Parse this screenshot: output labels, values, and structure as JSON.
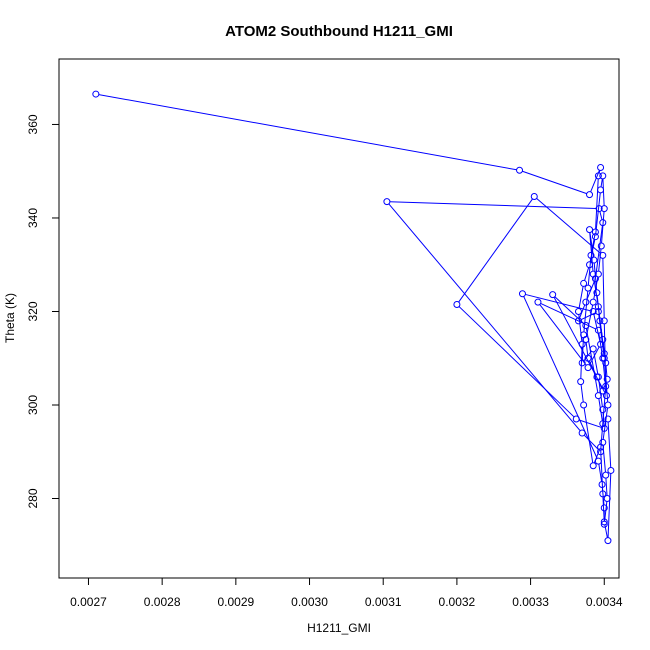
{
  "chart_data": {
    "type": "scatter",
    "mode": "lines+markers",
    "title": "ATOM2 Southbound H1211_GMI",
    "xlabel": "H1211_GMI",
    "ylabel": "Theta (K)",
    "xlim": [
      0.00266,
      0.00342
    ],
    "ylim": [
      263,
      374
    ],
    "x_ticks": [
      "0.0027",
      "0.0028",
      "0.0029",
      "0.0030",
      "0.0031",
      "0.0032",
      "0.0033",
      "0.0034"
    ],
    "y_ticks": [
      "280",
      "300",
      "320",
      "340",
      "360"
    ],
    "grid": false,
    "legend": "none",
    "series_color": "#0000ff",
    "points": [
      [
        0.00271,
        366.5
      ],
      [
        0.003285,
        350.2
      ],
      [
        0.00338,
        345.0
      ],
      [
        0.003395,
        350.8
      ],
      [
        0.003392,
        349.0
      ],
      [
        0.003388,
        337.0
      ],
      [
        0.003382,
        332.0
      ],
      [
        0.003378,
        325.0
      ],
      [
        0.003372,
        315.0
      ],
      [
        0.00337,
        309.0
      ],
      [
        0.003385,
        312.0
      ],
      [
        0.003392,
        306.0
      ],
      [
        0.003398,
        299.0
      ],
      [
        0.0034,
        295.0
      ],
      [
        0.003362,
        297.0
      ],
      [
        0.0032,
        321.5
      ],
      [
        0.003305,
        344.6
      ],
      [
        0.003398,
        332.0
      ],
      [
        0.0034,
        318.0
      ],
      [
        0.003402,
        304.0
      ],
      [
        0.003395,
        290.0
      ],
      [
        0.00337,
        294.0
      ],
      [
        0.003105,
        343.5
      ],
      [
        0.003393,
        342.0
      ],
      [
        0.003398,
        339.0
      ],
      [
        0.003388,
        327.0
      ],
      [
        0.003375,
        322.0
      ],
      [
        0.003365,
        318.0
      ],
      [
        0.003392,
        320.0
      ],
      [
        0.0034,
        310.0
      ],
      [
        0.003405,
        300.0
      ],
      [
        0.003398,
        292.0
      ],
      [
        0.003402,
        285.0
      ],
      [
        0.003404,
        280.0
      ],
      [
        0.0034,
        274.5
      ],
      [
        0.0034,
        278.0
      ],
      [
        0.003397,
        283.0
      ],
      [
        0.003392,
        288.0
      ],
      [
        0.003289,
        323.8
      ],
      [
        0.003385,
        320.0
      ],
      [
        0.003395,
        313.0
      ],
      [
        0.003378,
        308.0
      ],
      [
        0.00331,
        322.0
      ],
      [
        0.003392,
        316.0
      ],
      [
        0.003398,
        310.0
      ],
      [
        0.003403,
        302.0
      ],
      [
        0.00333,
        323.6
      ],
      [
        0.003375,
        317.0
      ],
      [
        0.003392,
        302.0
      ],
      [
        0.003398,
        296.0
      ],
      [
        0.003405,
        297.0
      ],
      [
        0.003409,
        286.0
      ],
      [
        0.003405,
        271.0
      ],
      [
        0.0034,
        275.0
      ],
      [
        0.003398,
        281.0
      ],
      [
        0.003395,
        291.0
      ],
      [
        0.003385,
        287.0
      ],
      [
        0.003372,
        300.0
      ],
      [
        0.003368,
        305.0
      ],
      [
        0.00337,
        313.0
      ],
      [
        0.003365,
        320.0
      ],
      [
        0.003372,
        326.0
      ],
      [
        0.00338,
        330.0
      ],
      [
        0.003388,
        336.0
      ],
      [
        0.003395,
        346.0
      ],
      [
        0.003398,
        349.0
      ],
      [
        0.0034,
        342.0
      ],
      [
        0.003396,
        334.0
      ],
      [
        0.003392,
        328.0
      ],
      [
        0.003385,
        322.0
      ],
      [
        0.003375,
        314.0
      ],
      [
        0.003378,
        310.0
      ],
      [
        0.00339,
        306.0
      ],
      [
        0.003398,
        303.0
      ],
      [
        0.003404,
        305.5
      ],
      [
        0.003402,
        309.0
      ],
      [
        0.003398,
        314.0
      ],
      [
        0.003394,
        318.0
      ],
      [
        0.00339,
        324.0
      ],
      [
        0.003386,
        331.0
      ],
      [
        0.00338,
        337.5
      ],
      [
        0.003385,
        328.0
      ],
      [
        0.003392,
        321.0
      ],
      [
        0.0034,
        311.0
      ]
    ]
  }
}
